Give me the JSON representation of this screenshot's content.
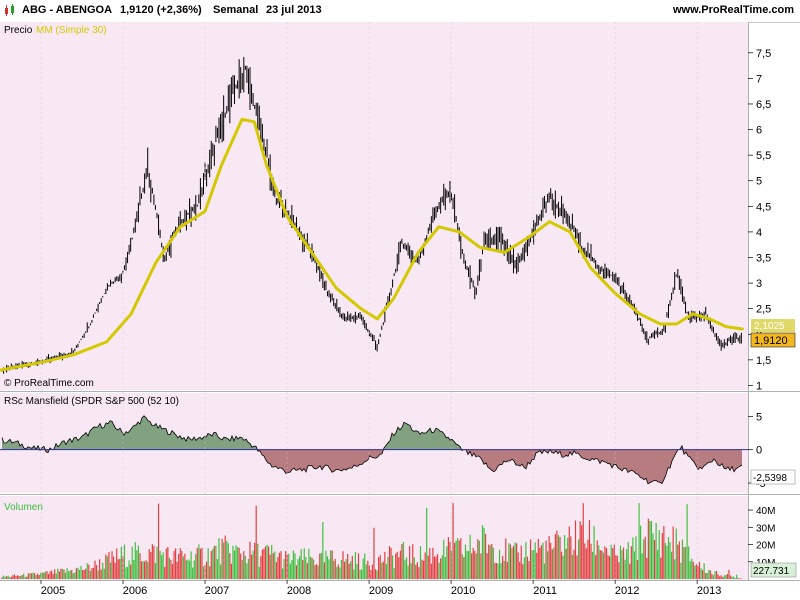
{
  "header": {
    "ticker": "ABG - ABENGOA",
    "price_change": "1,9120 (+2,36%)",
    "period": "Semanal",
    "date": "23 jul 2013",
    "site": "www.ProRealTime.com"
  },
  "colors": {
    "panel_bg": "#f8e8f4",
    "ma_line": "#d4c800",
    "rsc_positive": "#5a8a5a",
    "rsc_negative": "#a05858",
    "volume_up": "#3fbf3f",
    "volume_down": "#e04040",
    "label_price_bg": "#f2b61e",
    "label_ma_bg": "#e0d96a"
  },
  "price_panel": {
    "label_prefix": "Precio",
    "label_ma": "MM (Simple 30)",
    "copyright": "© ProRealTime.com",
    "last_price_label": "1,9120",
    "ma_value_label": "2,1025"
  },
  "rsc_panel": {
    "label": "RSc Mansfield (SPDR S&P 500 (52 10)",
    "last_value_label": "-2,5398"
  },
  "volume_panel": {
    "label": "Volumen",
    "last_value_label": "227.731"
  },
  "chart_data": [
    {
      "type": "line",
      "title": "Precio",
      "y_ticks": [
        "1",
        "1,5",
        "2",
        "2,5",
        "3",
        "3,5",
        "4",
        "4,5",
        "5",
        "5,5",
        "6",
        "6,5",
        "7",
        "7,5"
      ],
      "y_tick_values": [
        1,
        1.5,
        2,
        2.5,
        3,
        3.5,
        4,
        4.5,
        5,
        5.5,
        6,
        6.5,
        7,
        7.5
      ],
      "ylim": [
        0.95,
        7.75
      ],
      "xlim": [
        2004.5,
        2013.62
      ],
      "series": [
        {
          "name": "Precio",
          "x": [
            2004.5,
            2004.8,
            2005.1,
            2005.4,
            2005.6,
            2005.8,
            2006.0,
            2006.15,
            2006.3,
            2006.5,
            2006.7,
            2006.9,
            2007.1,
            2007.3,
            2007.5,
            2007.55,
            2007.7,
            2007.85,
            2008.0,
            2008.3,
            2008.5,
            2008.7,
            2008.9,
            2009.1,
            2009.2,
            2009.4,
            2009.6,
            2009.8,
            2010.0,
            2010.15,
            2010.3,
            2010.4,
            2010.6,
            2010.8,
            2011.0,
            2011.2,
            2011.4,
            2011.6,
            2011.8,
            2012.0,
            2012.2,
            2012.4,
            2012.6,
            2012.75,
            2012.9,
            2013.1,
            2013.3,
            2013.45,
            2013.55
          ],
          "values": [
            1.3,
            1.4,
            1.5,
            1.65,
            2.2,
            2.9,
            3.2,
            4.1,
            5.3,
            3.5,
            4.2,
            4.5,
            5.6,
            6.6,
            7.2,
            6.8,
            5.9,
            4.7,
            4.4,
            3.6,
            2.8,
            2.3,
            2.35,
            1.75,
            2.4,
            3.8,
            3.4,
            4.4,
            4.8,
            3.5,
            2.8,
            3.8,
            3.9,
            3.3,
            4.0,
            4.7,
            4.3,
            3.7,
            3.3,
            3.1,
            2.6,
            1.9,
            2.1,
            3.2,
            2.3,
            2.4,
            1.75,
            1.95,
            1.912
          ]
        },
        {
          "name": "MM (Simple 30)",
          "x": [
            2004.5,
            2005.0,
            2005.4,
            2005.8,
            2006.1,
            2006.4,
            2006.7,
            2007.0,
            2007.2,
            2007.45,
            2007.6,
            2007.75,
            2008.0,
            2008.3,
            2008.6,
            2008.9,
            2009.1,
            2009.3,
            2009.6,
            2009.85,
            2010.1,
            2010.35,
            2010.65,
            2010.95,
            2011.2,
            2011.45,
            2011.7,
            2012.0,
            2012.3,
            2012.55,
            2012.75,
            2012.95,
            2013.15,
            2013.35,
            2013.55
          ],
          "values": [
            1.3,
            1.45,
            1.6,
            1.85,
            2.4,
            3.4,
            4.1,
            4.4,
            5.3,
            6.2,
            6.15,
            5.3,
            4.3,
            3.6,
            2.9,
            2.5,
            2.3,
            2.7,
            3.6,
            4.1,
            4.0,
            3.7,
            3.6,
            3.9,
            4.2,
            4.0,
            3.3,
            2.8,
            2.4,
            2.2,
            2.2,
            2.4,
            2.3,
            2.15,
            2.1025
          ]
        }
      ]
    },
    {
      "type": "area",
      "title": "RSc Mansfield (SPDR S&P 500 (52 10)",
      "y_ticks": [
        "5",
        "0",
        "-5"
      ],
      "y_tick_values": [
        5,
        0,
        -5
      ],
      "ylim": [
        -6.5,
        8.5
      ],
      "xlim": [
        2004.5,
        2013.62
      ],
      "series": [
        {
          "name": "RSc Mansfield (SPDR S&P 500 (52 10)",
          "x": [
            2004.5,
            2004.7,
            2004.9,
            2005.1,
            2005.3,
            2005.5,
            2005.7,
            2005.85,
            2006.0,
            2006.1,
            2006.25,
            2006.4,
            2006.5,
            2006.65,
            2006.8,
            2006.95,
            2007.1,
            2007.25,
            2007.45,
            2007.6,
            2007.8,
            2008.0,
            2008.2,
            2008.4,
            2008.6,
            2008.8,
            2009.0,
            2009.15,
            2009.3,
            2009.45,
            2009.6,
            2009.8,
            2010.0,
            2010.1,
            2010.2,
            2010.35,
            2010.5,
            2010.7,
            2010.9,
            2011.05,
            2011.2,
            2011.35,
            2011.5,
            2011.7,
            2011.9,
            2012.1,
            2012.25,
            2012.4,
            2012.55,
            2012.7,
            2012.8,
            2012.9,
            2013.05,
            2013.2,
            2013.35,
            2013.5,
            2013.55
          ],
          "values": [
            1.5,
            1.0,
            0.2,
            0.0,
            1.2,
            1.8,
            3.5,
            4.0,
            2.5,
            3.0,
            4.8,
            3.5,
            3.0,
            2.2,
            1.5,
            1.8,
            2.3,
            1.5,
            1.8,
            0.5,
            -2.3,
            -3.3,
            -3.0,
            -2.5,
            -3.1,
            -2.7,
            -1.3,
            -0.8,
            2.5,
            4.0,
            2.3,
            3.0,
            1.5,
            0.2,
            -0.5,
            -1.4,
            -3.2,
            -1.5,
            -2.7,
            -0.6,
            -0.3,
            -0.7,
            -0.6,
            -1.4,
            -2.0,
            -3.0,
            -3.6,
            -4.7,
            -5.2,
            -1.6,
            0.5,
            -1.4,
            -3.0,
            -1.4,
            -3.0,
            -2.8,
            -2.54
          ]
        }
      ]
    },
    {
      "type": "bar",
      "title": "Volumen",
      "y_ticks": [
        "10M",
        "20M",
        "30M",
        "40M"
      ],
      "y_tick_values": [
        10000000,
        20000000,
        30000000,
        40000000
      ],
      "ylim": [
        0,
        47000000
      ],
      "xlim": [
        2004.5,
        2013.62
      ],
      "series": [
        {
          "name": "Volumen",
          "x": [
            2004.5,
            2004.8,
            2005.1,
            2005.4,
            2005.6,
            2005.8,
            2006.0,
            2006.2,
            2006.4,
            2006.6,
            2006.8,
            2007.0,
            2007.2,
            2007.4,
            2007.6,
            2007.8,
            2008.0,
            2008.2,
            2008.4,
            2008.6,
            2008.8,
            2009.0,
            2009.2,
            2009.4,
            2009.6,
            2009.8,
            2010.0,
            2010.2,
            2010.4,
            2010.6,
            2010.8,
            2011.0,
            2011.2,
            2011.4,
            2011.6,
            2011.8,
            2012.0,
            2012.2,
            2012.4,
            2012.6,
            2012.8,
            2013.0,
            2013.2,
            2013.4,
            2013.55
          ],
          "values": [
            1500000,
            2500000,
            4000000,
            6000000,
            8000000,
            12000000,
            16000000,
            17000000,
            18000000,
            15000000,
            15000000,
            16000000,
            20000000,
            18000000,
            17000000,
            17000000,
            13000000,
            14000000,
            13000000,
            14000000,
            13000000,
            11000000,
            14000000,
            17000000,
            15000000,
            18000000,
            19000000,
            20000000,
            26000000,
            20000000,
            16000000,
            22000000,
            20000000,
            26000000,
            28000000,
            25000000,
            15000000,
            18000000,
            30000000,
            28000000,
            22000000,
            10000000,
            4000000,
            2000000,
            227731
          ]
        }
      ]
    }
  ],
  "time_axis": {
    "ticks": [
      "2005",
      "2006",
      "2007",
      "2008",
      "2009",
      "2010",
      "2011",
      "2012",
      "2013"
    ],
    "tick_values": [
      2005,
      2006,
      2007,
      2008,
      2009,
      2010,
      2011,
      2012,
      2013
    ]
  }
}
